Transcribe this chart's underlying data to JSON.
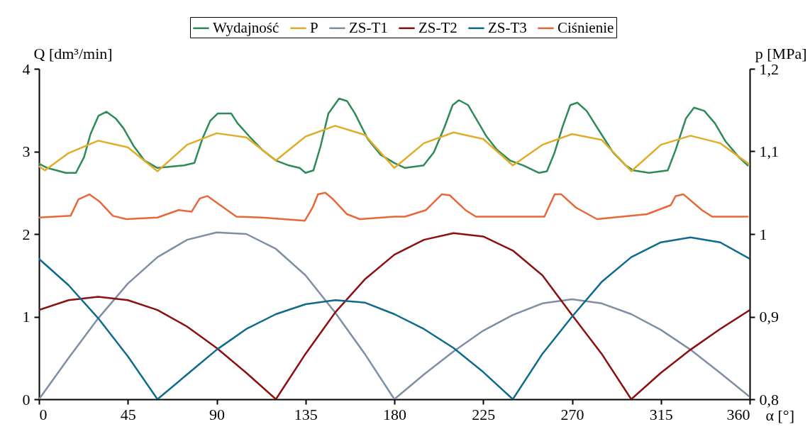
{
  "chart_data": {
    "type": "line",
    "xlabel": "α [°]",
    "ylabel": "Q [dm³/min]",
    "y2label": "p [MPa]",
    "xlim": [
      0,
      360
    ],
    "xticks": [
      0,
      45,
      90,
      135,
      180,
      225,
      270,
      315,
      360
    ],
    "ylim": [
      0,
      4
    ],
    "yticks": [
      0,
      1,
      2,
      3,
      4
    ],
    "y2lim": [
      0.8,
      1.2
    ],
    "y2ticks": [
      {
        "value": 0.8,
        "label": "0,8"
      },
      {
        "value": 0.9,
        "label": "0,9"
      },
      1,
      {
        "value": 1.1,
        "label": "1,1"
      },
      {
        "value": 1.2,
        "label": "1,2"
      }
    ],
    "legend": "top right",
    "line_style": "solid",
    "series": [
      {
        "name": "Wydajność",
        "color": "#2e8b57",
        "x": [
          0,
          4.2,
          13.5,
          18.7,
          22.8,
          26.1,
          30.1,
          34.1,
          38.8,
          42.8,
          48.1,
          53.4,
          60,
          73.4,
          78.7,
          82.7,
          86.7,
          90.6,
          97.3,
          100.6,
          106.6,
          113,
          120,
          126.6,
          132,
          135,
          139,
          142.6,
          146.6,
          152,
          156,
          160,
          166.5,
          173,
          180,
          185.4,
          194.8,
          200,
          205.5,
          209.5,
          212.7,
          217.4,
          221.3,
          226.7,
          232,
          238.6,
          245.4,
          253.3,
          257.3,
          261.2,
          265.2,
          269.1,
          272.7,
          277.4,
          284,
          290.7,
          297.2,
          301,
          309,
          318.5,
          322.5,
          327.7,
          331.8,
          337,
          342.4,
          347.8,
          354.5,
          359
        ],
        "values": [
          2.85,
          2.8,
          2.74,
          2.74,
          2.93,
          3.21,
          3.43,
          3.48,
          3.4,
          3.28,
          3.06,
          2.89,
          2.8,
          2.83,
          2.86,
          3.15,
          3.37,
          3.46,
          3.46,
          3.34,
          3.18,
          3.02,
          2.89,
          2.83,
          2.8,
          2.74,
          2.77,
          3.06,
          3.46,
          3.64,
          3.61,
          3.46,
          3.15,
          2.96,
          2.86,
          2.8,
          2.83,
          2.99,
          3.3,
          3.56,
          3.62,
          3.56,
          3.4,
          3.18,
          3.02,
          2.89,
          2.83,
          2.74,
          2.76,
          2.99,
          3.3,
          3.56,
          3.59,
          3.49,
          3.24,
          2.99,
          2.83,
          2.77,
          2.74,
          2.77,
          3.02,
          3.4,
          3.53,
          3.49,
          3.34,
          3.12,
          2.93,
          2.83
        ]
      },
      {
        "name": "P",
        "color": "#e0ac2a",
        "x": [
          0,
          3,
          15,
          30,
          45,
          60,
          75,
          90,
          105,
          120,
          135,
          150,
          165,
          180,
          195,
          210,
          225,
          240,
          255,
          270,
          285,
          300,
          315,
          330,
          345,
          360
        ],
        "values": [
          2.82,
          2.77,
          2.98,
          3.13,
          3.05,
          2.76,
          3.08,
          3.22,
          3.17,
          2.89,
          3.18,
          3.31,
          3.2,
          2.8,
          3.1,
          3.23,
          3.15,
          2.83,
          3.08,
          3.21,
          3.14,
          2.76,
          3.08,
          3.19,
          3.1,
          2.84
        ]
      },
      {
        "name": "ZS-T1",
        "color": "#7f8fa3",
        "x": [
          0,
          15,
          30,
          45,
          60,
          75,
          90,
          105,
          120,
          135,
          150,
          165,
          180,
          195,
          210,
          225,
          240,
          255,
          270,
          285,
          300,
          315,
          330,
          345,
          360
        ],
        "values": [
          0,
          0.5,
          0.98,
          1.4,
          1.72,
          1.93,
          2.02,
          2.0,
          1.82,
          1.5,
          1.05,
          0.55,
          0,
          0.3,
          0.58,
          0.83,
          1.02,
          1.16,
          1.21,
          1.16,
          1.03,
          0.84,
          0.6,
          0.32,
          0.03
        ]
      },
      {
        "name": "ZS-T2",
        "color": "#8b1010",
        "x": [
          0,
          15,
          30,
          45,
          60,
          75,
          90,
          105,
          120,
          135,
          150,
          165,
          180,
          195,
          210,
          225,
          240,
          255,
          270,
          285,
          300,
          315,
          330,
          345,
          360
        ],
        "values": [
          1.08,
          1.2,
          1.24,
          1.2,
          1.08,
          0.88,
          0.62,
          0.32,
          0,
          0.55,
          1.05,
          1.45,
          1.75,
          1.93,
          2.01,
          1.97,
          1.8,
          1.5,
          1.02,
          0.55,
          0,
          0.32,
          0.6,
          0.85,
          1.08
        ]
      },
      {
        "name": "ZS-T3",
        "color": "#0f6b8e",
        "x": [
          0,
          15,
          30,
          45,
          60,
          75,
          90,
          105,
          120,
          135,
          150,
          165,
          180,
          195,
          210,
          225,
          240,
          255,
          270,
          285,
          300,
          315,
          330,
          345,
          360
        ],
        "values": [
          1.7,
          1.38,
          0.98,
          0.52,
          0,
          0.3,
          0.6,
          0.85,
          1.03,
          1.15,
          1.2,
          1.17,
          1.03,
          0.85,
          0.62,
          0.33,
          0,
          0.55,
          1.0,
          1.42,
          1.72,
          1.9,
          1.96,
          1.9,
          1.7
        ]
      },
      {
        "name": "Ciśnienie",
        "color": "#e8683a",
        "axis": "y2",
        "x": [
          0,
          16,
          20,
          25.5,
          30.8,
          37.4,
          44.2,
          60,
          70.7,
          77.3,
          81.4,
          85.4,
          90.6,
          100,
          113,
          134.6,
          138.6,
          141.3,
          145,
          149,
          156,
          162.5,
          180,
          185.4,
          196,
          204,
          208,
          216,
          221.3,
          241.4,
          256,
          261.2,
          264.6,
          272,
          282.6,
          308,
          320,
          322.5,
          326.5,
          335.8,
          341,
          359
        ],
        "values": [
          1.02,
          1.022,
          1.042,
          1.048,
          1.039,
          1.022,
          1.018,
          1.02,
          1.029,
          1.027,
          1.043,
          1.046,
          1.037,
          1.021,
          1.02,
          1.016,
          1.032,
          1.048,
          1.05,
          1.042,
          1.024,
          1.018,
          1.021,
          1.021,
          1.029,
          1.048,
          1.047,
          1.029,
          1.021,
          1.021,
          1.021,
          1.048,
          1.048,
          1.032,
          1.018,
          1.024,
          1.035,
          1.046,
          1.048,
          1.029,
          1.021,
          1.021
        ]
      }
    ]
  }
}
